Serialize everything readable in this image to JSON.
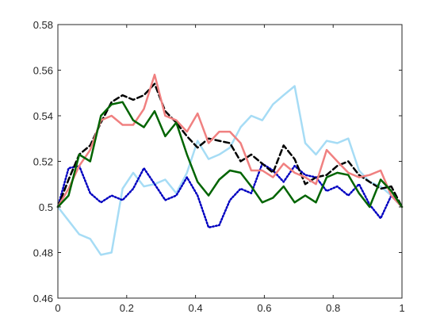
{
  "chart_data": {
    "type": "line",
    "title": "",
    "xlabel": "",
    "ylabel": "",
    "xlim": [
      0,
      1
    ],
    "ylim": [
      0.46,
      0.58
    ],
    "grid": false,
    "x_ticks": [
      "0",
      "0.2",
      "0.4",
      "0.6",
      "0.8",
      "1"
    ],
    "y_ticks": [
      "0.46",
      "0.48",
      "0.5",
      "0.52",
      "0.54",
      "0.56",
      "0.58"
    ],
    "series": [
      {
        "color": "#a6dcf5",
        "style": "solid",
        "x": [
          0,
          0.031,
          0.062,
          0.094,
          0.125,
          0.156,
          0.188,
          0.219,
          0.25,
          0.281,
          0.312,
          0.344,
          0.375,
          0.406,
          0.438,
          0.469,
          0.5,
          0.531,
          0.562,
          0.594,
          0.625,
          0.656,
          0.688,
          0.719,
          0.75,
          0.781,
          0.812,
          0.844,
          0.875,
          0.906,
          0.938,
          0.969,
          1
        ],
        "values": [
          0.5,
          0.494,
          0.488,
          0.486,
          0.479,
          0.48,
          0.508,
          0.515,
          0.509,
          0.51,
          0.512,
          0.506,
          0.515,
          0.529,
          0.521,
          0.523,
          0.526,
          0.535,
          0.54,
          0.538,
          0.545,
          0.549,
          0.553,
          0.528,
          0.523,
          0.529,
          0.528,
          0.53,
          0.516,
          0.511,
          0.509,
          0.505,
          0.5
        ]
      },
      {
        "color": "#0000c0",
        "style": "dotted",
        "x": [
          0,
          0.031,
          0.062,
          0.094,
          0.125,
          0.156,
          0.188,
          0.219,
          0.25,
          0.281,
          0.312,
          0.344,
          0.375,
          0.406,
          0.438,
          0.469,
          0.5,
          0.531,
          0.562,
          0.594,
          0.625,
          0.656,
          0.688,
          0.719,
          0.75,
          0.781,
          0.812,
          0.844,
          0.875,
          0.906,
          0.938,
          0.969,
          1
        ],
        "values": [
          0.5,
          0.517,
          0.518,
          0.506,
          0.502,
          0.505,
          0.503,
          0.508,
          0.517,
          0.51,
          0.503,
          0.505,
          0.513,
          0.505,
          0.491,
          0.492,
          0.503,
          0.508,
          0.506,
          0.519,
          0.516,
          0.511,
          0.518,
          0.514,
          0.513,
          0.507,
          0.509,
          0.505,
          0.51,
          0.501,
          0.495,
          0.505,
          0.5
        ]
      },
      {
        "color": "#000000",
        "style": "dashed",
        "x": [
          0,
          0.031,
          0.062,
          0.094,
          0.125,
          0.156,
          0.188,
          0.219,
          0.25,
          0.281,
          0.312,
          0.344,
          0.375,
          0.406,
          0.438,
          0.469,
          0.5,
          0.531,
          0.562,
          0.594,
          0.625,
          0.656,
          0.688,
          0.719,
          0.75,
          0.781,
          0.812,
          0.844,
          0.875,
          0.906,
          0.938,
          0.969,
          1
        ],
        "values": [
          0.5,
          0.512,
          0.523,
          0.527,
          0.537,
          0.546,
          0.549,
          0.547,
          0.549,
          0.554,
          0.542,
          0.537,
          0.531,
          0.526,
          0.53,
          0.529,
          0.528,
          0.52,
          0.523,
          0.519,
          0.515,
          0.527,
          0.521,
          0.51,
          0.513,
          0.514,
          0.518,
          0.52,
          0.514,
          0.511,
          0.508,
          0.509,
          0.5
        ]
      },
      {
        "color": "#f08080",
        "style": "solid",
        "x": [
          0,
          0.031,
          0.062,
          0.094,
          0.125,
          0.156,
          0.188,
          0.219,
          0.25,
          0.281,
          0.312,
          0.344,
          0.375,
          0.406,
          0.438,
          0.469,
          0.5,
          0.531,
          0.562,
          0.594,
          0.625,
          0.656,
          0.688,
          0.719,
          0.75,
          0.781,
          0.812,
          0.844,
          0.875,
          0.906,
          0.938,
          0.969,
          1
        ],
        "values": [
          0.5,
          0.508,
          0.518,
          0.525,
          0.538,
          0.54,
          0.536,
          0.536,
          0.543,
          0.558,
          0.54,
          0.538,
          0.533,
          0.541,
          0.528,
          0.533,
          0.533,
          0.528,
          0.516,
          0.516,
          0.513,
          0.519,
          0.515,
          0.513,
          0.51,
          0.525,
          0.52,
          0.515,
          0.513,
          0.514,
          0.516,
          0.505,
          0.5
        ]
      },
      {
        "color": "#006400",
        "style": "solid",
        "x": [
          0,
          0.031,
          0.062,
          0.094,
          0.125,
          0.156,
          0.188,
          0.219,
          0.25,
          0.281,
          0.312,
          0.344,
          0.375,
          0.406,
          0.438,
          0.469,
          0.5,
          0.531,
          0.562,
          0.594,
          0.625,
          0.656,
          0.688,
          0.719,
          0.75,
          0.781,
          0.812,
          0.844,
          0.875,
          0.906,
          0.938,
          0.969,
          1
        ],
        "values": [
          0.5,
          0.505,
          0.523,
          0.52,
          0.54,
          0.545,
          0.546,
          0.538,
          0.535,
          0.542,
          0.531,
          0.537,
          0.523,
          0.511,
          0.505,
          0.512,
          0.516,
          0.515,
          0.509,
          0.502,
          0.504,
          0.509,
          0.502,
          0.505,
          0.502,
          0.513,
          0.515,
          0.514,
          0.506,
          0.5,
          0.512,
          0.507,
          0.5
        ]
      }
    ]
  }
}
